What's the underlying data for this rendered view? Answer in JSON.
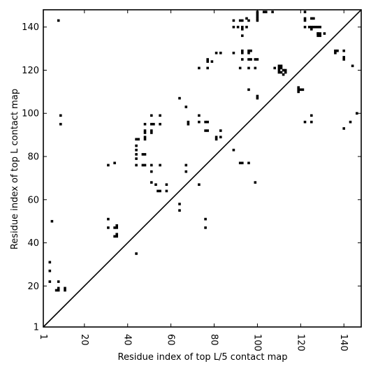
{
  "chart_data": {
    "type": "scatter",
    "title": "",
    "xlabel": "Residue index of top L/5 contact map",
    "ylabel": "Residue index of top L contact map",
    "xlim": [
      1,
      148
    ],
    "ylim": [
      1,
      148
    ],
    "x_ticks": [
      1,
      20,
      40,
      60,
      80,
      100,
      120,
      140
    ],
    "y_ticks": [
      1,
      20,
      40,
      60,
      80,
      100,
      120,
      140
    ],
    "grid": false,
    "legend": "none",
    "diagonal": true,
    "marker": "square",
    "colors": {
      "marker": "#000000",
      "axis": "#000000",
      "diagonal": "#000000",
      "background": "#ffffff"
    },
    "upper_points": [
      [
        8,
        143
      ],
      [
        48,
        88
      ],
      [
        64,
        107
      ],
      [
        67,
        103
      ],
      [
        68,
        95
      ],
      [
        68,
        96
      ],
      [
        73,
        99
      ],
      [
        73,
        96
      ],
      [
        73,
        121
      ],
      [
        76,
        92
      ],
      [
        76,
        96
      ],
      [
        77,
        92
      ],
      [
        77,
        96
      ],
      [
        77,
        121
      ],
      [
        77,
        125
      ],
      [
        77,
        124
      ],
      [
        79,
        124
      ],
      [
        81,
        88
      ],
      [
        81,
        89
      ],
      [
        81,
        128
      ],
      [
        83,
        92
      ],
      [
        83,
        89
      ],
      [
        83,
        128
      ],
      [
        89,
        143
      ],
      [
        89,
        140
      ],
      [
        89,
        128
      ],
      [
        91,
        140
      ],
      [
        92,
        143
      ],
      [
        92,
        121
      ],
      [
        93,
        143
      ],
      [
        93,
        140
      ],
      [
        93,
        139
      ],
      [
        93,
        136
      ],
      [
        93,
        129
      ],
      [
        93,
        128
      ],
      [
        93,
        125
      ],
      [
        95,
        144
      ],
      [
        95,
        140
      ],
      [
        96,
        143
      ],
      [
        96,
        129
      ],
      [
        96,
        128
      ],
      [
        96,
        125
      ],
      [
        96,
        121
      ],
      [
        97,
        125
      ],
      [
        97,
        129
      ],
      [
        99,
        125
      ],
      [
        99,
        121
      ],
      [
        100,
        145
      ],
      [
        100,
        146
      ],
      [
        100,
        147
      ],
      [
        100,
        144
      ],
      [
        100,
        143
      ],
      [
        100,
        125
      ],
      [
        100,
        108
      ],
      [
        100,
        107
      ],
      [
        103,
        147
      ],
      [
        104,
        147
      ],
      [
        107,
        147
      ],
      [
        108,
        121
      ],
      [
        110,
        121
      ],
      [
        110,
        122
      ],
      [
        110,
        120
      ],
      [
        110,
        119
      ],
      [
        111,
        122
      ],
      [
        111,
        121
      ],
      [
        111,
        119
      ],
      [
        112,
        118
      ],
      [
        112,
        120
      ],
      [
        113,
        120
      ],
      [
        113,
        119
      ],
      [
        119,
        112
      ],
      [
        119,
        111
      ],
      [
        119,
        110
      ],
      [
        120,
        111
      ],
      [
        121,
        111
      ],
      [
        122,
        147
      ],
      [
        122,
        144
      ],
      [
        122,
        143
      ],
      [
        122,
        140
      ],
      [
        124,
        140
      ],
      [
        125,
        144
      ],
      [
        125,
        140
      ],
      [
        125,
        139
      ],
      [
        126,
        144
      ],
      [
        126,
        140
      ],
      [
        127,
        140
      ],
      [
        128,
        140
      ],
      [
        128,
        137
      ],
      [
        128,
        136
      ],
      [
        129,
        137
      ],
      [
        129,
        136
      ],
      [
        129,
        140
      ],
      [
        131,
        137
      ],
      [
        136,
        129
      ],
      [
        136,
        128
      ],
      [
        137,
        129
      ],
      [
        140,
        129
      ],
      [
        140,
        126
      ],
      [
        140,
        125
      ],
      [
        144,
        122
      ],
      [
        96,
        111
      ],
      [
        93,
        77
      ],
      [
        92,
        77
      ]
    ],
    "lower_points": [
      [
        4,
        31
      ],
      [
        4,
        27
      ],
      [
        4,
        22
      ],
      [
        5,
        50
      ],
      [
        7,
        18
      ],
      [
        8,
        18
      ],
      [
        8,
        19
      ],
      [
        8,
        22
      ],
      [
        9,
        95
      ],
      [
        9,
        99
      ],
      [
        11,
        18
      ],
      [
        11,
        19
      ],
      [
        31,
        51
      ],
      [
        31,
        47
      ],
      [
        31,
        76
      ],
      [
        34,
        77
      ],
      [
        34,
        43
      ],
      [
        34,
        47
      ],
      [
        35,
        43
      ],
      [
        35,
        44
      ],
      [
        35,
        48
      ],
      [
        35,
        47
      ],
      [
        44,
        35
      ],
      [
        44,
        76
      ],
      [
        44,
        79
      ],
      [
        44,
        81
      ],
      [
        44,
        83
      ],
      [
        44,
        85
      ],
      [
        44,
        88
      ],
      [
        45,
        88
      ],
      [
        47,
        76
      ],
      [
        47,
        81
      ],
      [
        48,
        76
      ],
      [
        48,
        81
      ],
      [
        48,
        89
      ],
      [
        48,
        91
      ],
      [
        48,
        92
      ],
      [
        48,
        95
      ],
      [
        51,
        99
      ],
      [
        51,
        95
      ],
      [
        51,
        92
      ],
      [
        51,
        91
      ],
      [
        51,
        76
      ],
      [
        51,
        73
      ],
      [
        51,
        68
      ],
      [
        52,
        95
      ],
      [
        53,
        67
      ],
      [
        54,
        64
      ],
      [
        55,
        64
      ],
      [
        55,
        76
      ],
      [
        55,
        95
      ],
      [
        55,
        99
      ],
      [
        58,
        64
      ],
      [
        58,
        67
      ],
      [
        64,
        58
      ],
      [
        64,
        55
      ],
      [
        67,
        76
      ],
      [
        67,
        73
      ],
      [
        73,
        67
      ],
      [
        76,
        51
      ],
      [
        76,
        47
      ],
      [
        89,
        83
      ],
      [
        96,
        77
      ],
      [
        99,
        68
      ],
      [
        122,
        96
      ],
      [
        125,
        96
      ],
      [
        125,
        99
      ],
      [
        128,
        137
      ],
      [
        140,
        93
      ],
      [
        143,
        96
      ],
      [
        146,
        100
      ]
    ]
  }
}
